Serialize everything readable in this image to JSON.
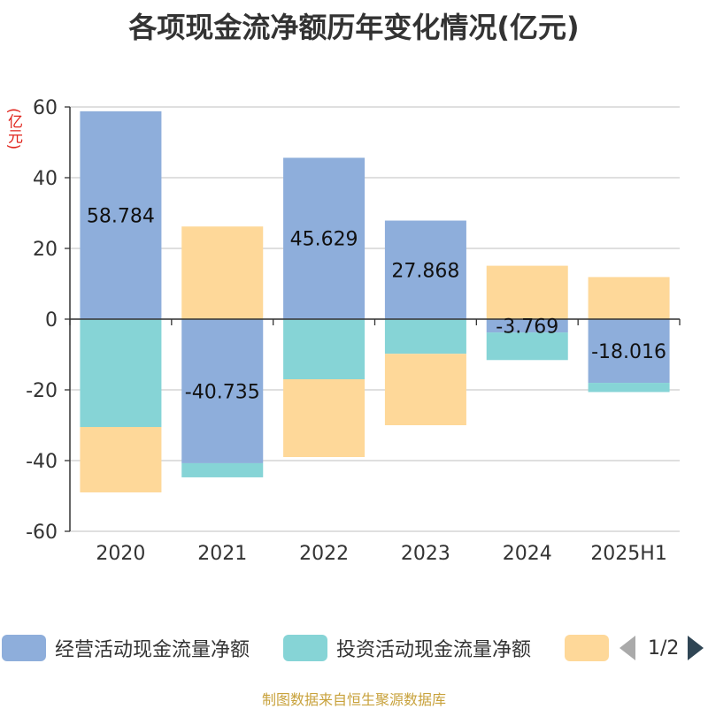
{
  "chart_data": {
    "type": "bar",
    "stacked": true,
    "title": "各项现金流净额历年变化情况(亿元)",
    "ylabel": "(亿元)",
    "xlabel": "",
    "categories": [
      "2020",
      "2021",
      "2022",
      "2023",
      "2024",
      "2025H1"
    ],
    "ylim": [
      -60,
      60
    ],
    "yticks": [
      60,
      40,
      20,
      0,
      -20,
      -40,
      -60
    ],
    "grid": true,
    "series": [
      {
        "name": "经营活动现金流量净额",
        "color": "#8eaedb",
        "values": [
          58.784,
          -40.735,
          45.629,
          27.868,
          -3.769,
          -18.016
        ],
        "labels": [
          "58.784",
          "-40.735",
          "45.629",
          "27.868",
          "-3.769",
          "-18.016"
        ]
      },
      {
        "name": "投资活动现金流量净额",
        "color": "#86d4d6",
        "values": [
          -30.5,
          -4.0,
          -17.0,
          -9.8,
          -7.8,
          -2.6
        ]
      },
      {
        "name": "",
        "color": "#fed899",
        "values": [
          -18.5,
          26.2,
          -22.0,
          -20.2,
          15.1,
          11.9
        ]
      }
    ]
  },
  "legend": {
    "items": [
      {
        "label": "经营活动现金流量净额",
        "color": "#8eaedb"
      },
      {
        "label": "投资活动现金流量净额",
        "color": "#86d4d6"
      },
      {
        "label": "",
        "color": "#fed899"
      }
    ],
    "page": "1/2"
  },
  "source": "制图数据来自恒生聚源数据库"
}
